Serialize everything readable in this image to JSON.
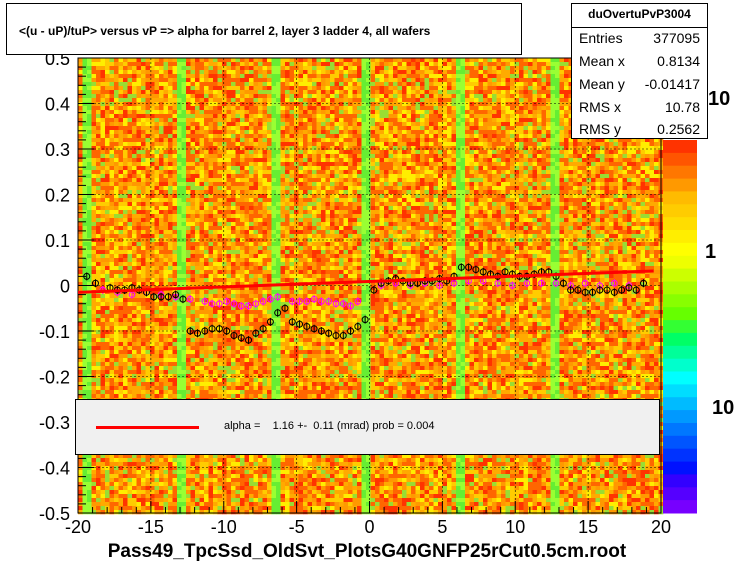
{
  "title": "<(u - uP)/tuP> versus   vP => alpha for barrel 2, layer 3 ladder 4, all wafers",
  "footer": "Pass49_TpcSsd_OldSvt_PlotsG40GNFP25rCut0.5cm.root",
  "stats": {
    "name": "duOvertuPvP3004",
    "rows": [
      {
        "label": "Entries",
        "value": "377095"
      },
      {
        "label": "Mean x",
        "value": "0.8134"
      },
      {
        "label": "Mean y",
        "value": "-0.01417"
      },
      {
        "label": "RMS x",
        "value": "10.78"
      },
      {
        "label": "RMS y",
        "value": "0.2562"
      }
    ]
  },
  "fit_legend": "alpha =    1.16 +-  0.11 (mrad) prob = 0.004",
  "colors": {
    "fit_line": "#ff0000",
    "profile_black": "#000000",
    "profile_magenta": "#ff00ff",
    "legend_bg": "#f0f0f0"
  },
  "chart_data": {
    "type": "heatmap",
    "xlim": [
      -20,
      20
    ],
    "ylim": [
      -0.5,
      0.5
    ],
    "x_ticks": [
      -20,
      -15,
      -10,
      -5,
      0,
      5,
      10,
      15,
      20
    ],
    "y_ticks": [
      -0.5,
      -0.4,
      -0.3,
      -0.2,
      -0.1,
      0,
      0.1,
      0.2,
      0.3,
      0.4,
      0.5
    ],
    "x_tick_labels": [
      "-20",
      "-15",
      "-10",
      "-5",
      "0",
      "5",
      "10",
      "15",
      "20"
    ],
    "y_tick_labels": [
      "-0.5",
      "-0.4",
      "-0.3",
      "-0.2",
      "-0.1",
      "0",
      "0.1",
      "0.2",
      "0.3",
      "0.4",
      "0.5"
    ],
    "z_tick_labels": [
      "10",
      "1",
      "10"
    ],
    "grid": true,
    "fit": {
      "x": [
        -20,
        19.5
      ],
      "y": [
        -0.015,
        0.032
      ]
    },
    "green_columns_x": [
      -19.5,
      -12.8,
      -6.3,
      -0.2,
      6.3,
      12.8
    ],
    "profile_black": {
      "x": [
        -19.4,
        -18.8,
        -17.8,
        -17.3,
        -16.8,
        -16.3,
        -15.8,
        -15.3,
        -14.8,
        -14.3,
        -13.8,
        -13.3,
        -12.8,
        -12.3,
        -11.8,
        -11.3,
        -10.8,
        -10.3,
        -9.8,
        -9.3,
        -8.8,
        -8.3,
        -7.8,
        -7.3,
        -6.8,
        -6.3,
        -5.8,
        -5.3,
        -4.8,
        -4.3,
        -3.8,
        -3.3,
        -2.8,
        -2.3,
        -1.8,
        -1.3,
        -0.8,
        -0.3,
        0.3,
        0.8,
        1.3,
        1.8,
        2.3,
        2.8,
        3.3,
        3.8,
        4.3,
        4.8,
        5.3,
        5.8,
        6.3,
        6.8,
        7.3,
        7.8,
        8.3,
        8.8,
        9.3,
        9.8,
        10.3,
        10.8,
        11.3,
        11.8,
        12.3,
        12.8,
        13.3,
        13.8,
        14.3,
        14.8,
        15.3,
        15.8,
        16.3,
        16.8,
        17.3,
        17.8,
        18.3,
        18.8
      ],
      "y": [
        0.02,
        0.005,
        -0.005,
        -0.01,
        -0.01,
        -0.005,
        -0.01,
        -0.015,
        -0.025,
        -0.025,
        -0.025,
        -0.02,
        -0.03,
        -0.1,
        -0.105,
        -0.1,
        -0.095,
        -0.095,
        -0.1,
        -0.11,
        -0.115,
        -0.12,
        -0.105,
        -0.095,
        -0.08,
        -0.06,
        -0.05,
        -0.08,
        -0.085,
        -0.09,
        -0.095,
        -0.1,
        -0.105,
        -0.11,
        -0.11,
        -0.1,
        -0.09,
        -0.075,
        -0.01,
        0.005,
        0.01,
        0.015,
        0.01,
        0.005,
        0.005,
        0.01,
        0.01,
        0.015,
        0.01,
        0.02,
        0.04,
        0.04,
        0.035,
        0.03,
        0.025,
        0.02,
        0.03,
        0.025,
        0.02,
        0.02,
        0.025,
        0.03,
        0.03,
        0.02,
        0.005,
        -0.01,
        -0.01,
        -0.015,
        -0.015,
        -0.01,
        -0.01,
        -0.015,
        -0.01,
        -0.005,
        -0.01,
        0.005
      ]
    },
    "profile_magenta": {
      "x": [
        -18.3,
        -17.3,
        -16.3,
        -15.3,
        -14.3,
        -13.3,
        -12.3,
        -11.3,
        -10.8,
        -10.3,
        -9.8,
        -9.3,
        -8.8,
        -8.3,
        -7.8,
        -7.3,
        -6.8,
        -6.3,
        -5.3,
        -4.8,
        -4.3,
        -3.8,
        -3.3,
        -2.8,
        -2.3,
        -1.8,
        -1.3,
        -0.8,
        0.8,
        1.8,
        2.8,
        3.8,
        4.8,
        5.8,
        6.8,
        7.8,
        8.8,
        9.8,
        10.8,
        11.8,
        12.8,
        13.8,
        14.8,
        15.8,
        16.8,
        17.8
      ],
      "y": [
        -0.01,
        -0.015,
        -0.02,
        -0.015,
        -0.02,
        -0.025,
        -0.03,
        -0.035,
        -0.04,
        -0.04,
        -0.035,
        -0.04,
        -0.045,
        -0.045,
        -0.04,
        -0.035,
        -0.03,
        -0.025,
        -0.035,
        -0.035,
        -0.035,
        -0.03,
        -0.035,
        -0.035,
        -0.04,
        -0.04,
        -0.045,
        -0.035,
        0.0,
        0.005,
        0.0,
        0.005,
        0.0,
        0.005,
        0.01,
        0.01,
        0.005,
        0.0,
        0.005,
        0.005,
        0.005,
        0.0,
        0.005,
        0.0,
        0.005,
        0.0
      ]
    }
  }
}
